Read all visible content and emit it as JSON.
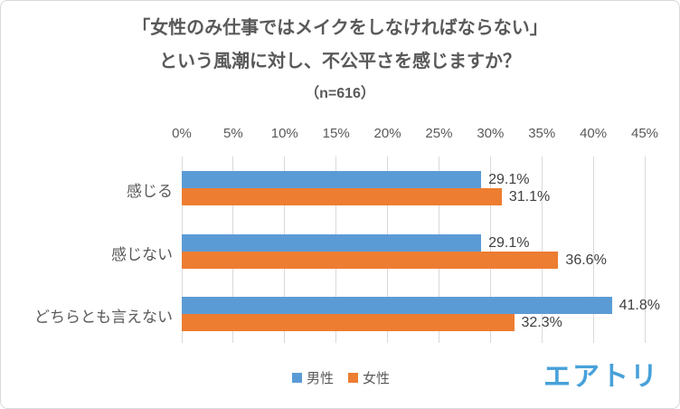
{
  "title": {
    "line1": "「女性のみ仕事ではメイクをしなければならない」",
    "line2": "という風潮に対し、不公平さを感じますか？",
    "sample": "（n=616）"
  },
  "chart_data": {
    "type": "bar",
    "orientation": "horizontal",
    "title": "「女性のみ仕事ではメイクをしなければならない」という風潮に対し、不公平さを感じますか？",
    "sample_size_label": "（n=616）",
    "categories": [
      "感じる",
      "感じない",
      "どちらとも言えない"
    ],
    "series": [
      {
        "name": "男性",
        "color": "#5B9BD5",
        "values": [
          29.1,
          29.1,
          41.8
        ]
      },
      {
        "name": "女性",
        "color": "#ED7D31",
        "values": [
          31.1,
          36.6,
          32.3
        ]
      }
    ],
    "data_labels": [
      [
        "29.1%",
        "31.1%"
      ],
      [
        "29.1%",
        "36.6%"
      ],
      [
        "41.8%",
        "32.3%"
      ]
    ],
    "value_suffix": "%",
    "axis": {
      "position": "top",
      "min": 0,
      "max": 45,
      "tick_step": 5,
      "ticks": [
        "0%",
        "5%",
        "10%",
        "15%",
        "20%",
        "25%",
        "30%",
        "35%",
        "40%",
        "45%"
      ]
    },
    "grid": true,
    "gridline_color": "#D9D9D9",
    "legend_position": "bottom",
    "text_color": "#595959",
    "data_label_color": "#404040"
  },
  "logo": {
    "text": "エアトリ",
    "color": "#47A1D9"
  }
}
